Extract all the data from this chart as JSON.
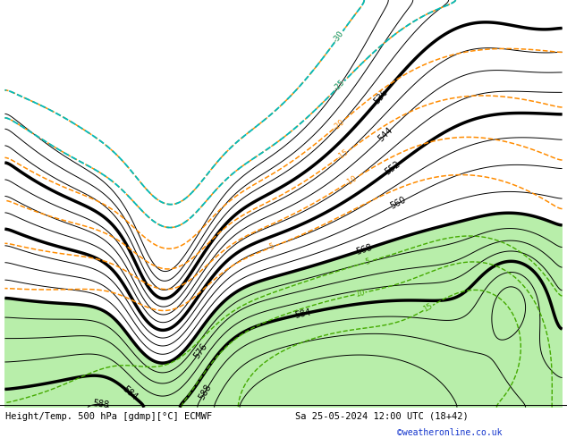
{
  "title_left": "Height/Temp. 500 hPa [gdmp][°C] ECMWF",
  "title_right": "Sa 25-05-2024 12:00 UTC (18+42)",
  "credit": "©weatheronline.co.uk",
  "map_bg": "#d2d2d2",
  "ocean_color": "#d2d2d2",
  "land_color": "#b8b8b8",
  "green_color": "#b8eeaa",
  "contour_color_z500": "#000000",
  "contour_color_temp_neg": "#ff8c00",
  "contour_color_temp_pos": "#44aa00",
  "contour_color_cold": "#00bbbb",
  "thick_contour_vals": [
    536,
    552,
    568,
    584
  ],
  "fig_width": 6.34,
  "fig_height": 4.9,
  "dpi": 100,
  "lon_min": -30,
  "lon_max": 50,
  "lat_min": 30,
  "lat_max": 75
}
